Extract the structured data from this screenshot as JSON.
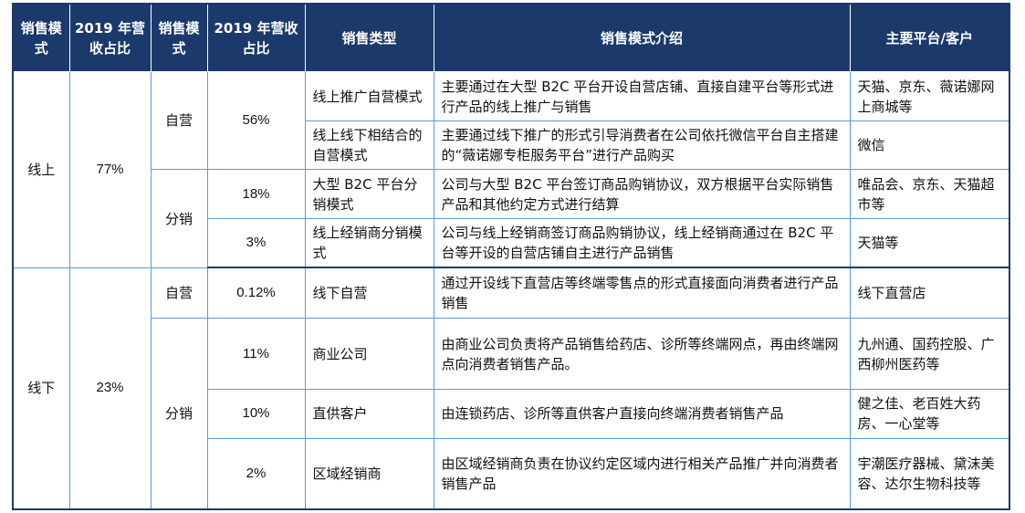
{
  "headers": [
    "销售模式",
    "2019 年营收占比",
    "销售模式",
    "2019 年营收占比",
    "销售类型",
    "销售模式介绍",
    "主要平台/客户"
  ],
  "groups": [
    {
      "channel": "线上",
      "share": "77%",
      "subgroups": [
        {
          "mode": "自营",
          "rows": [
            {
              "share": "56%",
              "type": "线上推广自营模式",
              "intro": "主要通过在大型 B2C 平台开设自营店铺、直接自建平台等形式进行产品的线上推广与销售",
              "platform": "天猫、京东、薇诺娜网上商城等"
            },
            {
              "share": "",
              "type": "线上线下相结合的自营模式",
              "intro": "主要通过线下推广的形式引导消费者在公司依托微信平台自主搭建的“薇诺娜专柜服务平台”进行产品购买",
              "platform": "微信"
            }
          ]
        },
        {
          "mode": "分销",
          "rows": [
            {
              "share": "18%",
              "type": "大型 B2C 平台分销模式",
              "intro": "公司与大型 B2C 平台签订商品购销协议，双方根据平台实际销售产品和其他约定方式进行结算",
              "platform": "唯品会、京东、天猫超市等"
            },
            {
              "share": "3%",
              "type": "线上经销商分销模式",
              "intro": "公司与线上经销商签订商品购销协议，线上经销商通过在 B2C 平台等开设的自营店铺自主进行产品销售",
              "platform": "天猫等"
            }
          ]
        }
      ]
    },
    {
      "channel": "线下",
      "share": "23%",
      "subgroups": [
        {
          "mode": "自营",
          "rows": [
            {
              "share": "0.12%",
              "type": "线下自营",
              "intro": "通过开设线下直营店等终端零售点的形式直接面向消费者进行产品销售",
              "platform": "线下直营店"
            }
          ]
        },
        {
          "mode": "分销",
          "rows": [
            {
              "share": "11%",
              "type": "商业公司",
              "intro": "由商业公司负责将产品销售给药店、诊所等终端网点，再由终端网点向消费者销售产品。",
              "platform": "九州通、国药控股、广西柳州医药等"
            },
            {
              "share": "10%",
              "type": "直供客户",
              "intro": "由连锁药店、诊所等直供客户直接向终端消费者销售产品",
              "platform": "健之佳、老百姓大药房、一心堂等"
            },
            {
              "share": "2%",
              "type": "区域经销商",
              "intro": "由区域经销商负责在协议约定区域内进行相关产品推广并向消费者销售产品",
              "platform": "宇潮医疗器械、黛沫美容、达尔生物科技等"
            }
          ]
        }
      ]
    }
  ]
}
